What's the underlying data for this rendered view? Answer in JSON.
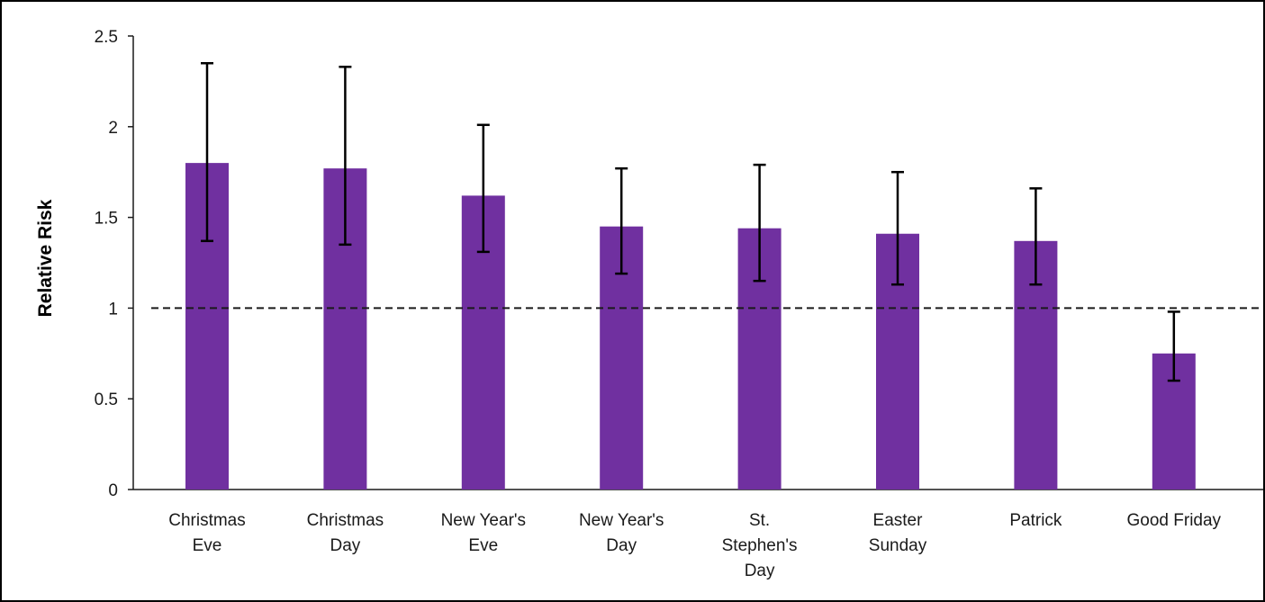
{
  "chart_data": {
    "type": "bar",
    "ylabel": "Relative Risk",
    "xlabel": "",
    "ylim": [
      0,
      2.5
    ],
    "yticks": [
      "0",
      "0.5",
      "1",
      "1.5",
      "2",
      "2.5"
    ],
    "categories": [
      [
        "Christmas",
        "Eve"
      ],
      [
        "Christmas",
        "Day"
      ],
      [
        "New Year's",
        "Eve"
      ],
      [
        "New Year's",
        "Day"
      ],
      [
        "St.",
        "Stephen's",
        "Day"
      ],
      [
        "Easter",
        "Sunday"
      ],
      [
        "Patrick"
      ],
      [
        "Good Friday"
      ]
    ],
    "series": [
      {
        "values": [
          1.8,
          1.77,
          1.62,
          1.45,
          1.44,
          1.41,
          1.37,
          0.75
        ],
        "error_low": [
          1.37,
          1.35,
          1.31,
          1.19,
          1.15,
          1.13,
          1.13,
          0.6
        ],
        "error_high": [
          2.35,
          2.33,
          2.01,
          1.77,
          1.79,
          1.75,
          1.66,
          0.98
        ]
      }
    ],
    "reference_line": {
      "y": 1,
      "style": "dashed"
    },
    "bar_color": "#7030a0",
    "grid": false,
    "legend": "none"
  }
}
